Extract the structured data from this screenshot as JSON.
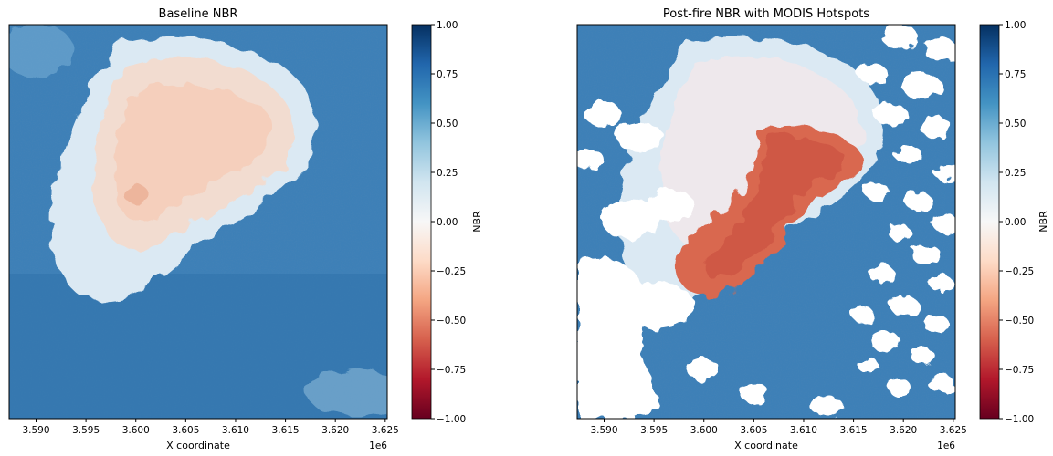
{
  "chart_data": [
    {
      "type": "heatmap",
      "title": "Baseline NBR",
      "xlabel": "X coordinate",
      "x_offset_label": "1e6",
      "xticks": [
        3.59,
        3.595,
        3.6,
        3.605,
        3.61,
        3.615,
        3.62,
        3.625
      ],
      "xtick_labels": [
        "3.590",
        "3.595",
        "3.600",
        "3.605",
        "3.610",
        "3.615",
        "3.620",
        "3.625"
      ],
      "xlim": [
        3.5873,
        3.6252
      ],
      "yticks_shown": false,
      "colorbar": {
        "label": "NBR",
        "cmap": "RdBu",
        "vmin": -1.0,
        "vmax": 1.0,
        "ticks": [
          1.0,
          0.75,
          0.5,
          0.25,
          0.0,
          -0.25,
          -0.5,
          -0.75,
          -1.0
        ],
        "tick_labels": [
          "1.00",
          "0.75",
          "0.50",
          "0.25",
          "0.00",
          "−0.25",
          "−0.50",
          "−0.75",
          "−1.00"
        ]
      },
      "regions": [
        {
          "name": "vegetation",
          "nbr": 0.55
        },
        {
          "name": "mountain-summit",
          "nbr": -0.1
        },
        {
          "name": "mountain-flanks",
          "nbr": 0.15
        }
      ]
    },
    {
      "type": "heatmap",
      "title": "Post-fire NBR with MODIS Hotspots",
      "xlabel": "X coordinate",
      "x_offset_label": "1e6",
      "xticks": [
        3.59,
        3.595,
        3.6,
        3.605,
        3.61,
        3.615,
        3.62,
        3.625
      ],
      "xtick_labels": [
        "3.590",
        "3.595",
        "3.600",
        "3.605",
        "3.610",
        "3.615",
        "3.620",
        "3.625"
      ],
      "xlim": [
        3.5873,
        3.6252
      ],
      "yticks_shown": false,
      "colorbar": {
        "label": "NBR",
        "cmap": "RdBu",
        "vmin": -1.0,
        "vmax": 1.0,
        "ticks": [
          1.0,
          0.75,
          0.5,
          0.25,
          0.0,
          -0.25,
          -0.5,
          -0.75,
          -1.0
        ],
        "tick_labels": [
          "1.00",
          "0.75",
          "0.50",
          "0.25",
          "0.00",
          "−0.25",
          "−0.50",
          "−0.75",
          "−1.00"
        ]
      },
      "regions": [
        {
          "name": "vegetation",
          "nbr": 0.55
        },
        {
          "name": "mountain-unburned",
          "nbr": 0.1
        },
        {
          "name": "burn-scar",
          "nbr": -0.4
        },
        {
          "name": "clouds",
          "nbr": 0.0
        }
      ]
    }
  ]
}
